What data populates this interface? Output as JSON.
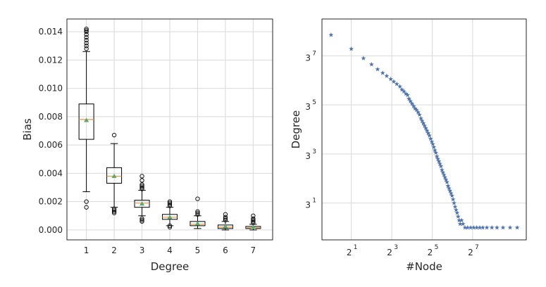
{
  "chart_data": [
    {
      "type": "box",
      "xlabel": "Degree",
      "ylabel": "Bias",
      "categories": [
        "1",
        "2",
        "3",
        "4",
        "5",
        "6",
        "7"
      ],
      "ylim": [
        -0.0007,
        0.0149
      ],
      "yticks": [
        "0.000",
        "0.002",
        "0.004",
        "0.006",
        "0.008",
        "0.010",
        "0.012",
        "0.014"
      ],
      "grid": true,
      "boxes": [
        {
          "category": "1",
          "whisker_low": 0.0027,
          "q1": 0.0064,
          "median": 0.0078,
          "q3": 0.0089,
          "whisker_high": 0.0126,
          "mean": 0.00775,
          "outliers": [
            0.0016,
            0.002,
            0.0128,
            0.013,
            0.0132,
            0.0134,
            0.0136,
            0.0138,
            0.014,
            0.0141,
            0.0142
          ]
        },
        {
          "category": "2",
          "whisker_low": 0.0016,
          "q1": 0.0033,
          "median": 0.0038,
          "q3": 0.0044,
          "whisker_high": 0.0061,
          "mean": 0.0038,
          "outliers": [
            0.0012,
            0.0013,
            0.0014,
            0.0015,
            0.0067
          ]
        },
        {
          "category": "3",
          "whisker_low": 0.001,
          "q1": 0.0016,
          "median": 0.0019,
          "q3": 0.0021,
          "whisker_high": 0.0028,
          "mean": 0.00185,
          "outliers": [
            0.0006,
            0.0007,
            0.0008,
            0.0029,
            0.003,
            0.0031,
            0.0032,
            0.0035,
            0.0038
          ]
        },
        {
          "category": "4",
          "whisker_low": 0.0003,
          "q1": 0.00075,
          "median": 0.0009,
          "q3": 0.0011,
          "whisker_high": 0.0016,
          "mean": 0.0009,
          "outliers": [
            0.0002,
            0.0003,
            0.0017,
            0.0018,
            0.0019,
            0.002
          ]
        },
        {
          "category": "5",
          "whisker_low": 0.0001,
          "q1": 0.0003,
          "median": 0.0004,
          "q3": 0.0006,
          "whisker_high": 0.001,
          "mean": 0.00045,
          "outliers": [
            0.0011,
            0.0012,
            0.0013,
            0.0022
          ]
        },
        {
          "category": "6",
          "whisker_low": 0.0,
          "q1": 0.0001,
          "median": 0.0002,
          "q3": 0.00035,
          "whisker_high": 0.0006,
          "mean": 0.00025,
          "outliers": [
            0.0007,
            0.0008,
            0.0009,
            0.0011
          ]
        },
        {
          "category": "7",
          "whisker_low": 0.0,
          "q1": 0.0001,
          "median": 0.00015,
          "q3": 0.00025,
          "whisker_high": 0.0004,
          "mean": 0.0002,
          "outliers": [
            0.0005,
            0.0006,
            0.0007,
            0.0008,
            0.001
          ]
        }
      ]
    },
    {
      "type": "scatter",
      "xlabel": "#Node",
      "ylabel": "Degree",
      "xscale": "log2",
      "yscale": "log3",
      "xlim_exp": [
        -0.45,
        9.65
      ],
      "ylim_exp": [
        -0.5,
        8.5
      ],
      "xticks": [
        {
          "base": "2",
          "exp": "1"
        },
        {
          "base": "2",
          "exp": "3"
        },
        {
          "base": "2",
          "exp": "5"
        },
        {
          "base": "2",
          "exp": "7"
        }
      ],
      "yticks": [
        {
          "base": "3",
          "exp": "1"
        },
        {
          "base": "3",
          "exp": "3"
        },
        {
          "base": "3",
          "exp": "5"
        },
        {
          "base": "3",
          "exp": "7"
        }
      ],
      "grid": true,
      "marker": "star",
      "color": "#4c72b0",
      "points_exp": [
        [
          0.0,
          7.85
        ],
        [
          1.0,
          7.28
        ],
        [
          1.6,
          6.9
        ],
        [
          2.0,
          6.65
        ],
        [
          2.3,
          6.45
        ],
        [
          2.55,
          6.3
        ],
        [
          2.75,
          6.18
        ],
        [
          2.95,
          6.05
        ],
        [
          3.1,
          5.95
        ],
        [
          3.25,
          5.85
        ],
        [
          3.4,
          5.75
        ],
        [
          3.5,
          5.62
        ],
        [
          3.6,
          5.55
        ],
        [
          3.7,
          5.45
        ],
        [
          3.78,
          5.4
        ],
        [
          3.85,
          5.25
        ],
        [
          3.92,
          5.15
        ],
        [
          4.0,
          5.05
        ],
        [
          4.08,
          4.95
        ],
        [
          4.15,
          4.85
        ],
        [
          4.22,
          4.8
        ],
        [
          4.3,
          4.7
        ],
        [
          4.37,
          4.6
        ],
        [
          4.44,
          4.45
        ],
        [
          4.5,
          4.35
        ],
        [
          4.56,
          4.25
        ],
        [
          4.62,
          4.15
        ],
        [
          4.68,
          4.05
        ],
        [
          4.74,
          3.95
        ],
        [
          4.8,
          3.85
        ],
        [
          4.86,
          3.75
        ],
        [
          4.92,
          3.62
        ],
        [
          4.98,
          3.5
        ],
        [
          5.03,
          3.4
        ],
        [
          5.08,
          3.28
        ],
        [
          5.13,
          3.15
        ],
        [
          5.18,
          3.05
        ],
        [
          5.23,
          2.9
        ],
        [
          5.28,
          2.8
        ],
        [
          5.33,
          2.7
        ],
        [
          5.38,
          2.6
        ],
        [
          5.43,
          2.5
        ],
        [
          5.48,
          2.35
        ],
        [
          5.53,
          2.25
        ],
        [
          5.58,
          2.15
        ],
        [
          5.63,
          2.05
        ],
        [
          5.68,
          1.95
        ],
        [
          5.73,
          1.85
        ],
        [
          5.78,
          1.7
        ],
        [
          5.83,
          1.6
        ],
        [
          5.88,
          1.5
        ],
        [
          5.93,
          1.4
        ],
        [
          5.98,
          1.3
        ],
        [
          6.03,
          1.15
        ],
        [
          6.08,
          1.0
        ],
        [
          6.13,
          0.85
        ],
        [
          6.18,
          0.72
        ],
        [
          6.23,
          0.6
        ],
        [
          6.28,
          0.45
        ],
        [
          6.33,
          0.3
        ],
        [
          6.38,
          0.15
        ],
        [
          6.45,
          0.3
        ],
        [
          6.52,
          0.15
        ],
        [
          6.62,
          0.0
        ],
        [
          6.75,
          0.0
        ],
        [
          6.9,
          0.0
        ],
        [
          7.05,
          0.0
        ],
        [
          7.2,
          0.0
        ],
        [
          7.35,
          0.0
        ],
        [
          7.5,
          0.0
        ],
        [
          7.7,
          0.0
        ],
        [
          7.95,
          0.0
        ],
        [
          8.2,
          0.0
        ],
        [
          8.5,
          0.0
        ],
        [
          8.85,
          0.0
        ],
        [
          9.2,
          0.0
        ]
      ]
    }
  ]
}
